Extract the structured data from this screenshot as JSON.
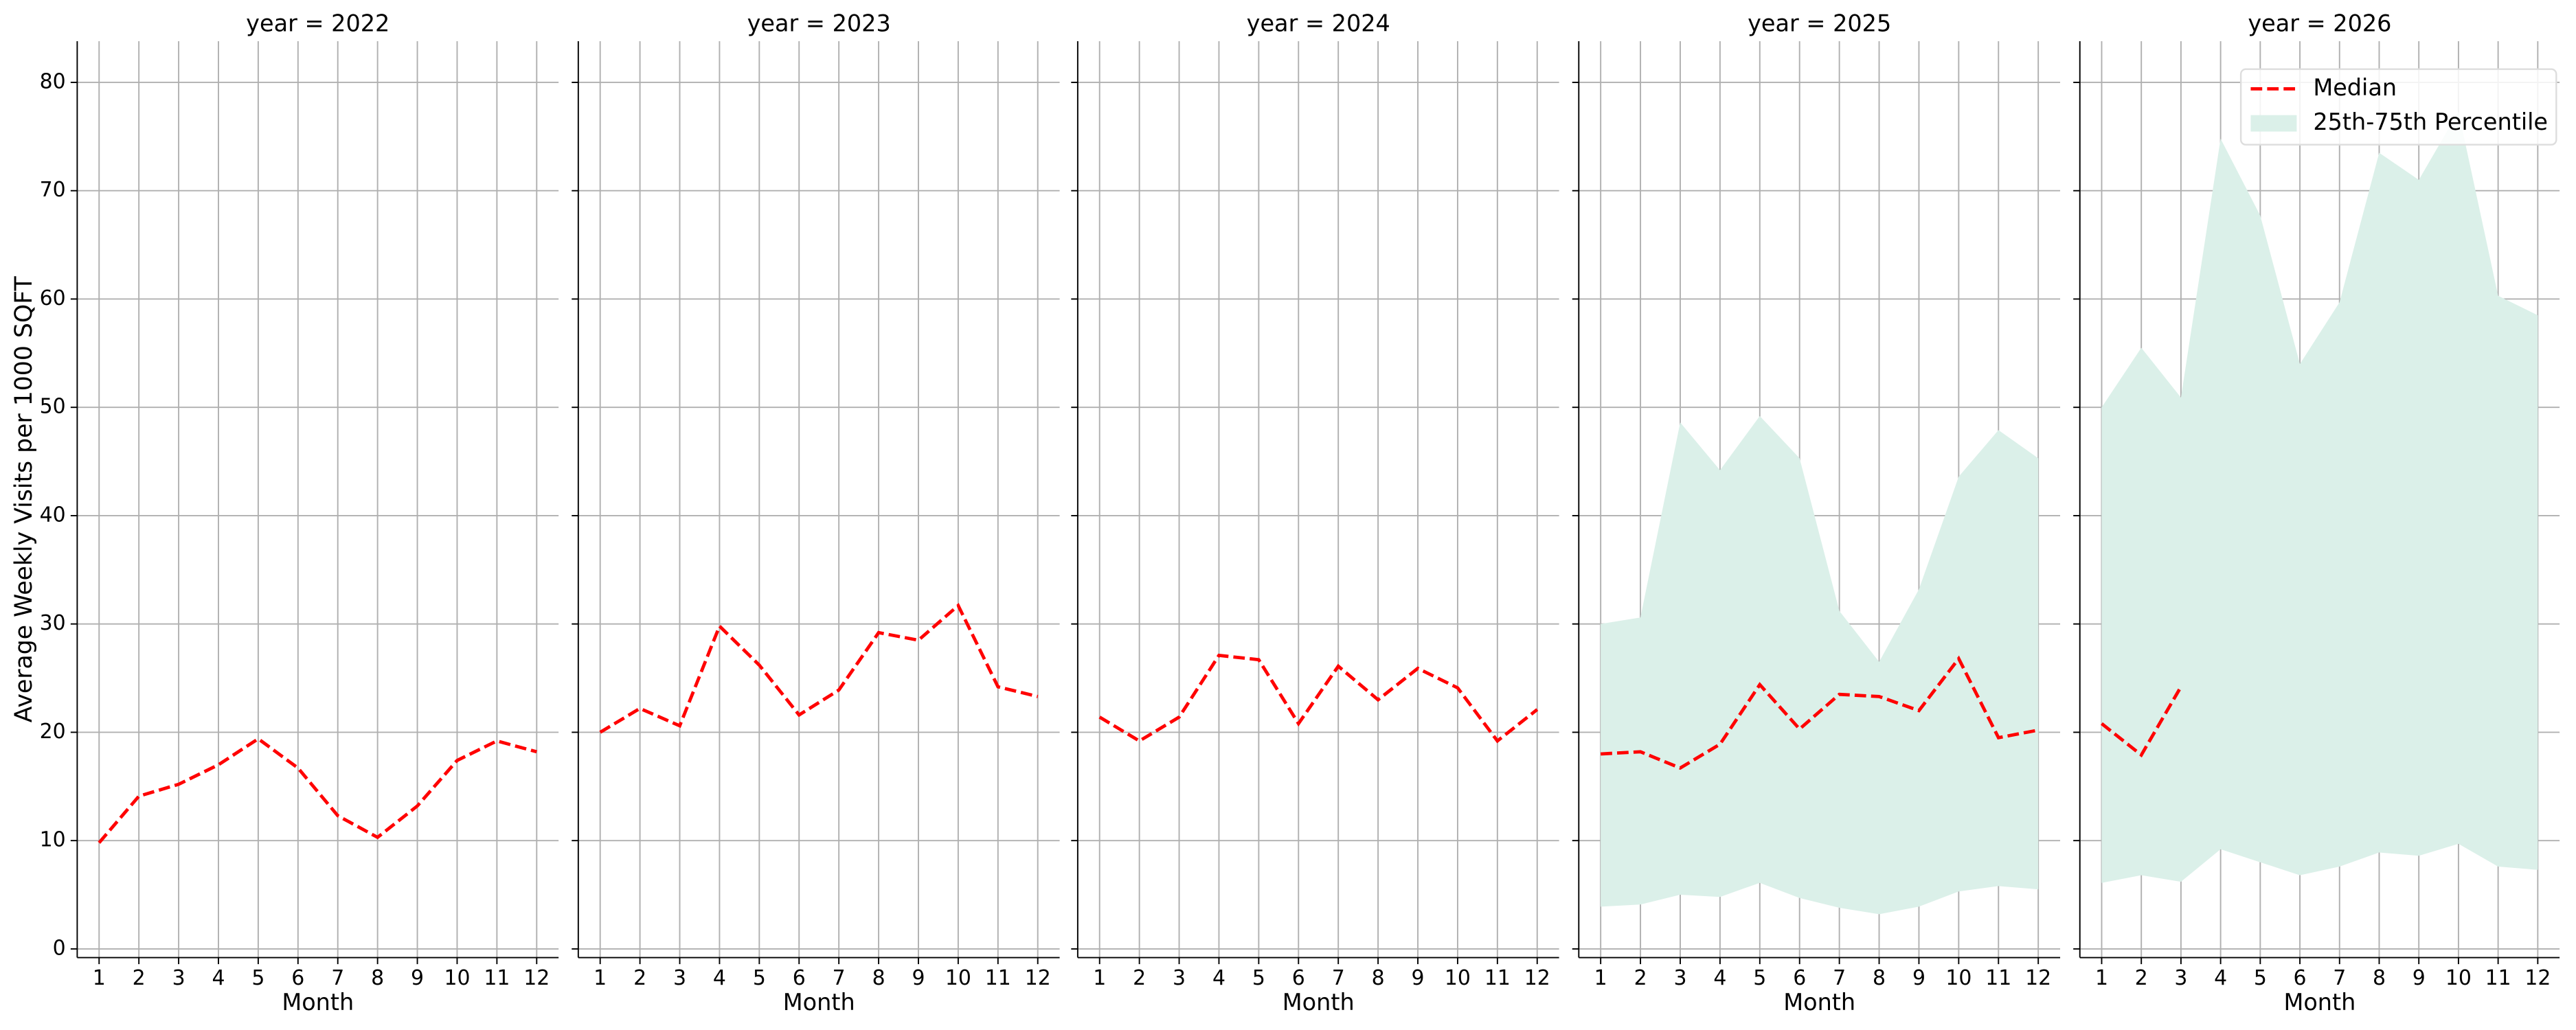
{
  "chart_data": [
    {
      "type": "line",
      "title": "year = 2022",
      "xlabel": "Month",
      "ylabel": "Average Weekly Visits per 1000 SQFT",
      "x": [
        1,
        2,
        3,
        4,
        5,
        6,
        7,
        8,
        9,
        10,
        11,
        12
      ],
      "xlim": [
        0.45,
        12.55
      ],
      "xticks": [
        1,
        2,
        3,
        4,
        5,
        6,
        7,
        8,
        9,
        10,
        11,
        12
      ],
      "ylim": [
        -0.8,
        83.8
      ],
      "yticks": [
        0,
        10,
        20,
        30,
        40,
        50,
        60,
        70,
        80
      ],
      "grid": true,
      "series": [
        {
          "color": "#ff0000",
          "style": "dashed",
          "values": [
            9.8,
            14.1,
            15.2,
            17,
            19.4,
            16.7,
            12.3,
            10.3,
            13.2,
            17.4,
            19.2,
            18.2
          ]
        }
      ]
    },
    {
      "type": "line",
      "title": "year = 2023",
      "xlabel": "Month",
      "x": [
        1,
        2,
        3,
        4,
        5,
        6,
        7,
        8,
        9,
        10,
        11,
        12
      ],
      "xlim": [
        0.45,
        12.55
      ],
      "xticks": [
        1,
        2,
        3,
        4,
        5,
        6,
        7,
        8,
        9,
        10,
        11,
        12
      ],
      "ylim": [
        -0.8,
        83.8
      ],
      "yticks": [
        0,
        10,
        20,
        30,
        40,
        50,
        60,
        70,
        80
      ],
      "grid": true,
      "series": [
        {
          "color": "#ff0000",
          "style": "dashed",
          "values": [
            20,
            22.2,
            20.6,
            29.8,
            26.2,
            21.6,
            23.9,
            29.2,
            28.5,
            31.7,
            24.2,
            23.3
          ]
        }
      ]
    },
    {
      "type": "line",
      "title": "year = 2024",
      "xlabel": "Month",
      "x": [
        1,
        2,
        3,
        4,
        5,
        6,
        7,
        8,
        9,
        10,
        11,
        12
      ],
      "xlim": [
        0.45,
        12.55
      ],
      "xticks": [
        1,
        2,
        3,
        4,
        5,
        6,
        7,
        8,
        9,
        10,
        11,
        12
      ],
      "ylim": [
        -0.8,
        83.8
      ],
      "yticks": [
        0,
        10,
        20,
        30,
        40,
        50,
        60,
        70,
        80
      ],
      "grid": true,
      "series": [
        {
          "color": "#ff0000",
          "style": "dashed",
          "values": [
            21.4,
            19.2,
            21.4,
            27.1,
            26.7,
            20.8,
            26.1,
            23,
            25.9,
            24.1,
            19.2,
            22.1
          ]
        }
      ]
    },
    {
      "type": "line",
      "title": "year = 2025",
      "xlabel": "Month",
      "x": [
        1,
        2,
        3,
        4,
        5,
        6,
        7,
        8,
        9,
        10,
        11,
        12
      ],
      "xlim": [
        0.45,
        12.55
      ],
      "xticks": [
        1,
        2,
        3,
        4,
        5,
        6,
        7,
        8,
        9,
        10,
        11,
        12
      ],
      "ylim": [
        -0.8,
        83.8
      ],
      "yticks": [
        0,
        10,
        20,
        30,
        40,
        50,
        60,
        70,
        80
      ],
      "grid": true,
      "band": {
        "color": "#dbf0e9",
        "lower": [
          3.9,
          4.1,
          5,
          4.8,
          6.1,
          4.7,
          3.8,
          3.2,
          3.9,
          5.3,
          5.8,
          5.5
        ],
        "upper": [
          30,
          30.6,
          48.6,
          44.2,
          49.2,
          45.3,
          31.2,
          26.5,
          33.2,
          43.6,
          47.9,
          45.3
        ]
      },
      "series": [
        {
          "color": "#ff0000",
          "style": "dashed",
          "values": [
            18,
            18.2,
            16.7,
            18.9,
            24.4,
            20.3,
            23.5,
            23.3,
            22,
            26.8,
            19.5,
            20.2
          ]
        }
      ]
    },
    {
      "type": "line",
      "title": "year = 2026",
      "xlabel": "Month",
      "x": [
        1,
        2,
        3,
        4,
        5,
        6,
        7,
        8,
        9,
        10,
        11,
        12
      ],
      "xlim": [
        0.45,
        12.55
      ],
      "xticks": [
        1,
        2,
        3,
        4,
        5,
        6,
        7,
        8,
        9,
        10,
        11,
        12
      ],
      "ylim": [
        -0.8,
        83.8
      ],
      "yticks": [
        0,
        10,
        20,
        30,
        40,
        50,
        60,
        70,
        80
      ],
      "grid": true,
      "legend": "upper right",
      "band": {
        "name": "25th-75th Percentile",
        "color": "#dbf0e9",
        "lower": [
          6.1,
          6.8,
          6.2,
          9.2,
          8,
          6.8,
          7.6,
          8.9,
          8.6,
          9.7,
          7.6,
          7.3
        ],
        "upper": [
          50,
          55.5,
          50.9,
          74.8,
          67.7,
          54,
          59.7,
          73.5,
          71,
          77.3,
          60.3,
          58.5
        ]
      },
      "series": [
        {
          "name": "Median",
          "color": "#ff0000",
          "style": "dashed",
          "values": [
            20.8,
            17.9,
            24.2,
            null,
            null,
            null,
            null,
            null,
            null,
            null,
            null,
            null
          ]
        }
      ]
    }
  ]
}
